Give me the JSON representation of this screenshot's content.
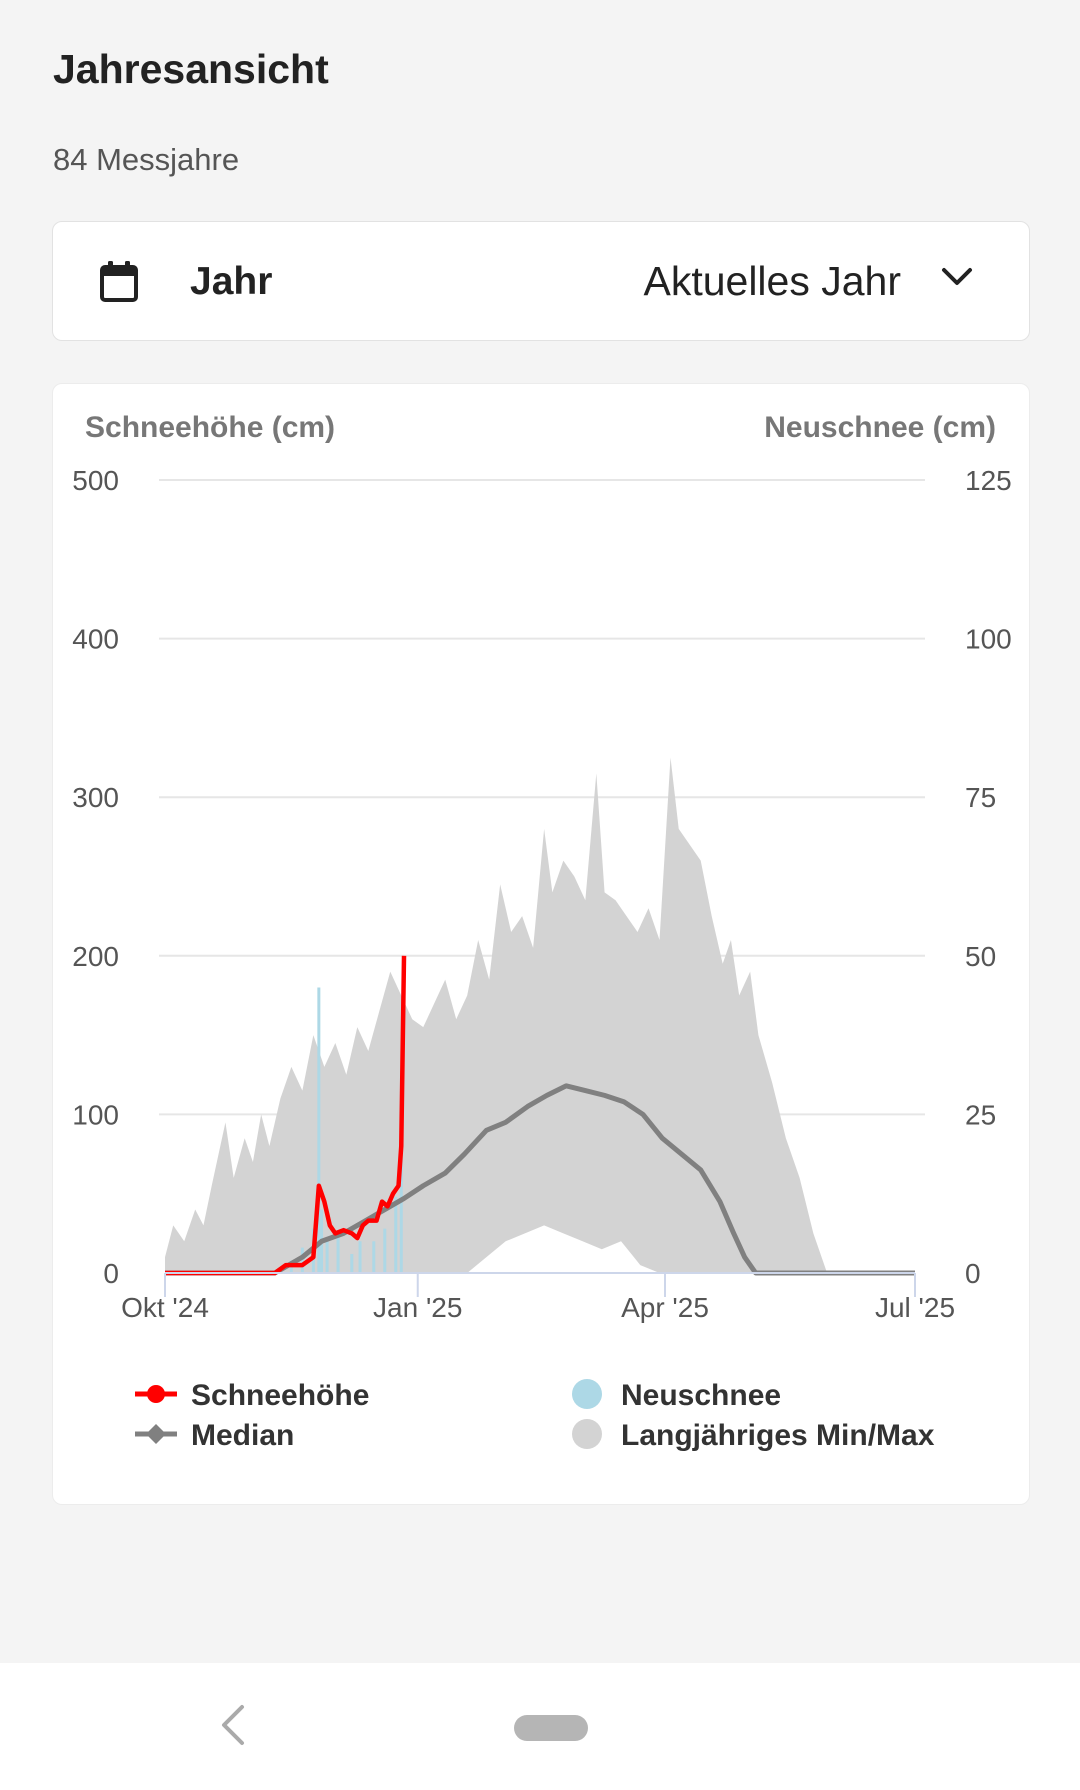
{
  "header": {
    "title": "Jahresansicht",
    "subtitle": "84 Messjahre"
  },
  "selector": {
    "icon": "calendar-icon",
    "label": "Jahr",
    "value": "Aktuelles Jahr",
    "chevron_icon": "chevron-down-icon"
  },
  "colors": {
    "schneehoehe": "#ff0000",
    "median": "#808080",
    "neuschnee": "#add8e6",
    "minmax": "#d3d3d3"
  },
  "chart_data": {
    "type": "area",
    "ylabel_left": "Schneehöhe (cm)",
    "ylabel_right": "Neuschnee (cm)",
    "ylim_left": [
      0,
      500
    ],
    "ylim_right": [
      0,
      125
    ],
    "yticks_left": [
      "500",
      "400",
      "300",
      "200",
      "100",
      "0"
    ],
    "yticks_right": [
      "125",
      "100",
      "75",
      "50",
      "25",
      "0"
    ],
    "xlim": [
      "2024-10-01",
      "2025-07-01"
    ],
    "xticks": [
      {
        "date": "2024-10-01",
        "label": "Okt '24"
      },
      {
        "date": "2025-01-01",
        "label": "Jan '25"
      },
      {
        "date": "2025-04-01",
        "label": "Apr '25"
      },
      {
        "date": "2025-07-01",
        "label": "Jul '25"
      }
    ],
    "grid": true,
    "legend": [
      {
        "name": "Schneehöhe",
        "marker": "circle-line"
      },
      {
        "name": "Neuschnee",
        "marker": "circle"
      },
      {
        "name": "Median",
        "marker": "diamond-line"
      },
      {
        "name": "Langjähriges Min/Max",
        "marker": "circle"
      }
    ],
    "legend_position": "bottom",
    "series": [
      {
        "name": "Schneehöhe",
        "axis": "left",
        "kind": "line",
        "points": [
          [
            "2024-10-01",
            0
          ],
          [
            "2024-11-10",
            0
          ],
          [
            "2024-11-14",
            5
          ],
          [
            "2024-11-20",
            5
          ],
          [
            "2024-11-24",
            10
          ],
          [
            "2024-11-26",
            55
          ],
          [
            "2024-11-28",
            45
          ],
          [
            "2024-11-30",
            30
          ],
          [
            "2024-12-02",
            25
          ],
          [
            "2024-12-05",
            27
          ],
          [
            "2024-12-08",
            25
          ],
          [
            "2024-12-10",
            22
          ],
          [
            "2024-12-12",
            30
          ],
          [
            "2024-12-14",
            33
          ],
          [
            "2024-12-17",
            33
          ],
          [
            "2024-12-19",
            45
          ],
          [
            "2024-12-21",
            42
          ],
          [
            "2024-12-23",
            50
          ],
          [
            "2024-12-25",
            55
          ],
          [
            "2024-12-26",
            80
          ],
          [
            "2024-12-27",
            200
          ]
        ]
      },
      {
        "name": "Median",
        "axis": "left",
        "kind": "line",
        "points": [
          [
            "2024-10-01",
            0
          ],
          [
            "2024-11-10",
            0
          ],
          [
            "2024-11-20",
            10
          ],
          [
            "2024-11-27",
            20
          ],
          [
            "2024-12-05",
            25
          ],
          [
            "2024-12-12",
            32
          ],
          [
            "2024-12-20",
            40
          ],
          [
            "2024-12-27",
            47
          ],
          [
            "2025-01-03",
            55
          ],
          [
            "2025-01-11",
            63
          ],
          [
            "2025-01-18",
            75
          ],
          [
            "2025-01-26",
            90
          ],
          [
            "2025-02-02",
            95
          ],
          [
            "2025-02-10",
            105
          ],
          [
            "2025-02-17",
            112
          ],
          [
            "2025-02-24",
            118
          ],
          [
            "2025-03-03",
            115
          ],
          [
            "2025-03-10",
            112
          ],
          [
            "2025-03-17",
            108
          ],
          [
            "2025-03-24",
            100
          ],
          [
            "2025-03-31",
            85
          ],
          [
            "2025-04-07",
            75
          ],
          [
            "2025-04-14",
            65
          ],
          [
            "2025-04-21",
            45
          ],
          [
            "2025-04-26",
            25
          ],
          [
            "2025-04-30",
            10
          ],
          [
            "2025-05-04",
            0
          ],
          [
            "2025-07-01",
            0
          ]
        ]
      },
      {
        "name": "Langjähriges Min/Max",
        "axis": "left",
        "kind": "band",
        "max": [
          [
            "2024-10-01",
            10
          ],
          [
            "2024-10-04",
            30
          ],
          [
            "2024-10-08",
            20
          ],
          [
            "2024-10-12",
            40
          ],
          [
            "2024-10-15",
            30
          ],
          [
            "2024-10-18",
            55
          ],
          [
            "2024-10-23",
            95
          ],
          [
            "2024-10-26",
            60
          ],
          [
            "2024-10-30",
            85
          ],
          [
            "2024-11-02",
            70
          ],
          [
            "2024-11-05",
            100
          ],
          [
            "2024-11-08",
            80
          ],
          [
            "2024-11-12",
            110
          ],
          [
            "2024-11-16",
            130
          ],
          [
            "2024-11-20",
            115
          ],
          [
            "2024-11-24",
            150
          ],
          [
            "2024-11-28",
            130
          ],
          [
            "2024-12-02",
            145
          ],
          [
            "2024-12-06",
            125
          ],
          [
            "2024-12-10",
            155
          ],
          [
            "2024-12-14",
            140
          ],
          [
            "2024-12-18",
            165
          ],
          [
            "2024-12-22",
            190
          ],
          [
            "2024-12-26",
            175
          ],
          [
            "2024-12-30",
            160
          ],
          [
            "2025-01-03",
            155
          ],
          [
            "2025-01-07",
            170
          ],
          [
            "2025-01-11",
            185
          ],
          [
            "2025-01-15",
            160
          ],
          [
            "2025-01-19",
            175
          ],
          [
            "2025-01-23",
            210
          ],
          [
            "2025-01-27",
            185
          ],
          [
            "2025-01-31",
            245
          ],
          [
            "2025-02-04",
            215
          ],
          [
            "2025-02-08",
            225
          ],
          [
            "2025-02-12",
            205
          ],
          [
            "2025-02-16",
            280
          ],
          [
            "2025-02-19",
            240
          ],
          [
            "2025-02-23",
            260
          ],
          [
            "2025-02-27",
            250
          ],
          [
            "2025-03-03",
            235
          ],
          [
            "2025-03-07",
            315
          ],
          [
            "2025-03-10",
            240
          ],
          [
            "2025-03-14",
            235
          ],
          [
            "2025-03-18",
            225
          ],
          [
            "2025-03-22",
            215
          ],
          [
            "2025-03-26",
            230
          ],
          [
            "2025-03-30",
            210
          ],
          [
            "2025-04-03",
            325
          ],
          [
            "2025-04-06",
            280
          ],
          [
            "2025-04-10",
            270
          ],
          [
            "2025-04-14",
            260
          ],
          [
            "2025-04-18",
            225
          ],
          [
            "2025-04-22",
            195
          ],
          [
            "2025-04-25",
            210
          ],
          [
            "2025-04-28",
            175
          ],
          [
            "2025-05-02",
            190
          ],
          [
            "2025-05-05",
            150
          ],
          [
            "2025-05-10",
            120
          ],
          [
            "2025-05-15",
            85
          ],
          [
            "2025-05-20",
            60
          ],
          [
            "2025-05-25",
            25
          ],
          [
            "2025-05-30",
            0
          ],
          [
            "2025-07-01",
            0
          ]
        ],
        "min": [
          [
            "2024-10-01",
            0
          ],
          [
            "2025-01-19",
            0
          ],
          [
            "2025-01-26",
            10
          ],
          [
            "2025-02-02",
            20
          ],
          [
            "2025-02-09",
            25
          ],
          [
            "2025-02-16",
            30
          ],
          [
            "2025-02-23",
            25
          ],
          [
            "2025-03-02",
            20
          ],
          [
            "2025-03-09",
            15
          ],
          [
            "2025-03-16",
            20
          ],
          [
            "2025-03-23",
            5
          ],
          [
            "2025-03-30",
            0
          ],
          [
            "2025-07-01",
            0
          ]
        ]
      },
      {
        "name": "Neuschnee",
        "axis": "right",
        "kind": "bar",
        "points": [
          [
            "2024-11-16",
            2
          ],
          [
            "2024-11-20",
            4
          ],
          [
            "2024-11-24",
            7
          ],
          [
            "2024-11-26",
            45
          ],
          [
            "2024-11-27",
            10
          ],
          [
            "2024-11-29",
            5
          ],
          [
            "2024-12-03",
            6
          ],
          [
            "2024-12-08",
            3
          ],
          [
            "2024-12-11",
            5
          ],
          [
            "2024-12-16",
            5
          ],
          [
            "2024-12-20",
            7
          ],
          [
            "2024-12-24",
            12
          ],
          [
            "2024-12-26",
            18
          ]
        ]
      }
    ]
  }
}
